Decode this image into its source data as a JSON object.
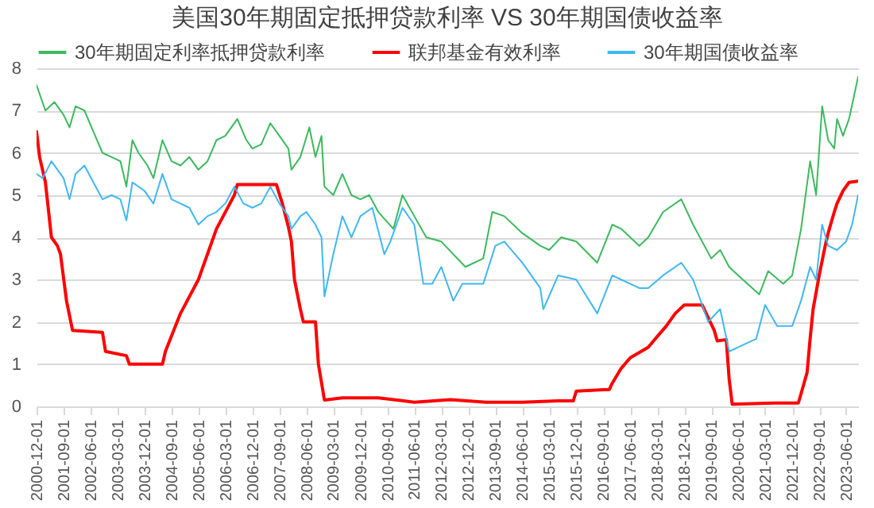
{
  "chart_data": {
    "type": "line",
    "title": "美国30年期固定抵押贷款利率 VS 30年期国债收益率",
    "ylim": [
      0,
      8
    ],
    "yticks": [
      0,
      1,
      2,
      3,
      4,
      5,
      6,
      7,
      8
    ],
    "grid": "y",
    "legend": "top",
    "xlim": [
      "2000-12",
      "2023-10"
    ],
    "xticks": [
      "2000-12-01",
      "2001-09-01",
      "2002-06-01",
      "2003-03-01",
      "2003-12-01",
      "2004-09-01",
      "2005-06-01",
      "2006-03-01",
      "2006-12-01",
      "2007-09-01",
      "2008-06-01",
      "2009-03-01",
      "2009-12-01",
      "2010-09-01",
      "2011-06-01",
      "2012-03-01",
      "2012-12-01",
      "2013-09-01",
      "2014-06-01",
      "2015-03-01",
      "2015-12-01",
      "2016-09-01",
      "2017-06-01",
      "2018-03-01",
      "2018-12-01",
      "2019-09-01",
      "2020-06-01",
      "2021-03-01",
      "2021-12-01",
      "2022-09-01",
      "2023-06-01"
    ],
    "series": [
      {
        "name": "30年期固定利率抵押贷款利率",
        "color": "#3cb95e",
        "x": [
          "2000-12",
          "2001-03",
          "2001-06",
          "2001-09",
          "2001-11",
          "2002-01",
          "2002-04",
          "2002-07",
          "2002-10",
          "2003-01",
          "2003-04",
          "2003-06",
          "2003-08",
          "2003-10",
          "2004-01",
          "2004-03",
          "2004-06",
          "2004-09",
          "2004-12",
          "2005-03",
          "2005-06",
          "2005-09",
          "2005-12",
          "2006-03",
          "2006-07",
          "2006-10",
          "2006-12",
          "2007-03",
          "2007-06",
          "2007-09",
          "2007-12",
          "2008-01",
          "2008-04",
          "2008-07",
          "2008-09",
          "2008-11",
          "2008-12",
          "2009-03",
          "2009-06",
          "2009-09",
          "2009-12",
          "2010-03",
          "2010-06",
          "2010-11",
          "2011-02",
          "2011-06",
          "2011-10",
          "2012-03",
          "2012-11",
          "2013-05",
          "2013-08",
          "2013-12",
          "2014-06",
          "2014-12",
          "2015-03",
          "2015-07",
          "2015-12",
          "2016-07",
          "2016-12",
          "2017-03",
          "2017-09",
          "2017-12",
          "2018-05",
          "2018-11",
          "2019-03",
          "2019-09",
          "2019-12",
          "2020-03",
          "2020-06",
          "2021-01",
          "2021-04",
          "2021-09",
          "2021-12",
          "2022-03",
          "2022-06",
          "2022-08",
          "2022-10",
          "2022-12",
          "2023-02",
          "2023-03",
          "2023-05",
          "2023-07",
          "2023-10"
        ],
        "values": [
          7.6,
          7.0,
          7.2,
          6.9,
          6.6,
          7.1,
          7.0,
          6.5,
          6.0,
          5.9,
          5.8,
          5.2,
          6.3,
          6.0,
          5.7,
          5.4,
          6.3,
          5.8,
          5.7,
          5.9,
          5.6,
          5.8,
          6.3,
          6.4,
          6.8,
          6.3,
          6.1,
          6.2,
          6.7,
          6.4,
          6.1,
          5.6,
          5.9,
          6.6,
          5.9,
          6.4,
          5.2,
          5.0,
          5.5,
          5.0,
          4.9,
          5.0,
          4.6,
          4.2,
          5.0,
          4.5,
          4.0,
          3.9,
          3.3,
          3.5,
          4.6,
          4.5,
          4.1,
          3.8,
          3.7,
          4.0,
          3.9,
          3.4,
          4.3,
          4.2,
          3.8,
          4.0,
          4.6,
          4.9,
          4.3,
          3.5,
          3.7,
          3.3,
          3.1,
          2.65,
          3.2,
          2.9,
          3.1,
          4.2,
          5.8,
          5.0,
          7.1,
          6.3,
          6.1,
          6.8,
          6.4,
          6.8,
          7.8
        ]
      },
      {
        "name": "联邦基金有效利率",
        "color": "#ff0000",
        "x": [
          "2000-12",
          "2001-01",
          "2001-03",
          "2001-05",
          "2001-07",
          "2001-08",
          "2001-10",
          "2001-12",
          "2002-10",
          "2002-11",
          "2003-06",
          "2003-07",
          "2004-06",
          "2004-07",
          "2004-12",
          "2005-06",
          "2005-12",
          "2006-06",
          "2006-07",
          "2007-08",
          "2007-10",
          "2007-12",
          "2008-01",
          "2008-02",
          "2008-04",
          "2008-05",
          "2008-09",
          "2008-10",
          "2008-12",
          "2009-06",
          "2010-06",
          "2011-06",
          "2012-06",
          "2013-06",
          "2014-06",
          "2015-06",
          "2015-11",
          "2015-12",
          "2016-11",
          "2016-12",
          "2017-03",
          "2017-06",
          "2017-12",
          "2018-03",
          "2018-06",
          "2018-09",
          "2018-12",
          "2019-06",
          "2019-08",
          "2019-10",
          "2019-11",
          "2020-02",
          "2020-03",
          "2020-04",
          "2021-06",
          "2022-02",
          "2022-03",
          "2022-05",
          "2022-06",
          "2022-07",
          "2022-09",
          "2022-11",
          "2022-12",
          "2023-02",
          "2023-03",
          "2023-05",
          "2023-07",
          "2023-10"
        ],
        "values": [
          6.5,
          5.9,
          5.3,
          4.0,
          3.8,
          3.6,
          2.5,
          1.8,
          1.75,
          1.3,
          1.2,
          1.0,
          1.0,
          1.3,
          2.2,
          3.0,
          4.2,
          5.0,
          5.25,
          5.25,
          4.8,
          4.25,
          3.9,
          3.0,
          2.3,
          2.0,
          2.0,
          1.0,
          0.15,
          0.2,
          0.2,
          0.1,
          0.16,
          0.1,
          0.1,
          0.13,
          0.13,
          0.36,
          0.4,
          0.55,
          0.9,
          1.15,
          1.4,
          1.65,
          1.9,
          2.2,
          2.4,
          2.4,
          2.1,
          1.8,
          1.55,
          1.58,
          0.65,
          0.05,
          0.08,
          0.08,
          0.3,
          0.8,
          1.6,
          2.3,
          3.1,
          3.8,
          4.1,
          4.6,
          4.8,
          5.1,
          5.3,
          5.33
        ]
      },
      {
        "name": "30年期国债收益率",
        "color": "#3fb8f0",
        "x": [
          "2000-12",
          "2001-02",
          "2001-05",
          "2001-09",
          "2001-11",
          "2002-01",
          "2002-04",
          "2002-07",
          "2002-10",
          "2003-01",
          "2003-04",
          "2003-06",
          "2003-08",
          "2003-12",
          "2004-03",
          "2004-06",
          "2004-09",
          "2004-12",
          "2005-03",
          "2005-06",
          "2005-09",
          "2005-12",
          "2006-03",
          "2006-06",
          "2006-09",
          "2006-12",
          "2007-03",
          "2007-06",
          "2007-09",
          "2007-12",
          "2008-01",
          "2008-04",
          "2008-06",
          "2008-09",
          "2008-11",
          "2008-12",
          "2009-03",
          "2009-06",
          "2009-09",
          "2009-12",
          "2010-04",
          "2010-08",
          "2010-10",
          "2011-02",
          "2011-06",
          "2011-09",
          "2011-12",
          "2012-03",
          "2012-07",
          "2012-10",
          "2013-05",
          "2013-09",
          "2013-12",
          "2014-06",
          "2014-12",
          "2015-01",
          "2015-06",
          "2015-12",
          "2016-07",
          "2016-12",
          "2017-03",
          "2017-09",
          "2017-12",
          "2018-05",
          "2018-11",
          "2019-03",
          "2019-08",
          "2019-12",
          "2020-03",
          "2020-06",
          "2020-12",
          "2021-03",
          "2021-07",
          "2021-12",
          "2022-03",
          "2022-06",
          "2022-08",
          "2022-10",
          "2022-12",
          "2023-03",
          "2023-06",
          "2023-08",
          "2023-10"
        ],
        "values": [
          5.5,
          5.4,
          5.8,
          5.4,
          4.9,
          5.5,
          5.7,
          5.3,
          4.9,
          5.0,
          4.9,
          4.4,
          5.3,
          5.1,
          4.8,
          5.5,
          4.9,
          4.8,
          4.7,
          4.3,
          4.5,
          4.6,
          4.8,
          5.2,
          4.8,
          4.7,
          4.8,
          5.2,
          4.8,
          4.5,
          4.2,
          4.5,
          4.6,
          4.3,
          4.0,
          2.6,
          3.6,
          4.5,
          4.0,
          4.5,
          4.7,
          3.6,
          3.9,
          4.7,
          4.3,
          2.9,
          2.9,
          3.3,
          2.5,
          2.9,
          2.9,
          3.8,
          3.9,
          3.4,
          2.8,
          2.3,
          3.1,
          3.0,
          2.2,
          3.1,
          3.0,
          2.8,
          2.8,
          3.1,
          3.4,
          3.0,
          2.0,
          2.3,
          1.3,
          1.4,
          1.6,
          2.4,
          1.9,
          1.9,
          2.5,
          3.3,
          3.0,
          4.3,
          3.8,
          3.7,
          3.9,
          4.3,
          5.0
        ]
      }
    ]
  }
}
